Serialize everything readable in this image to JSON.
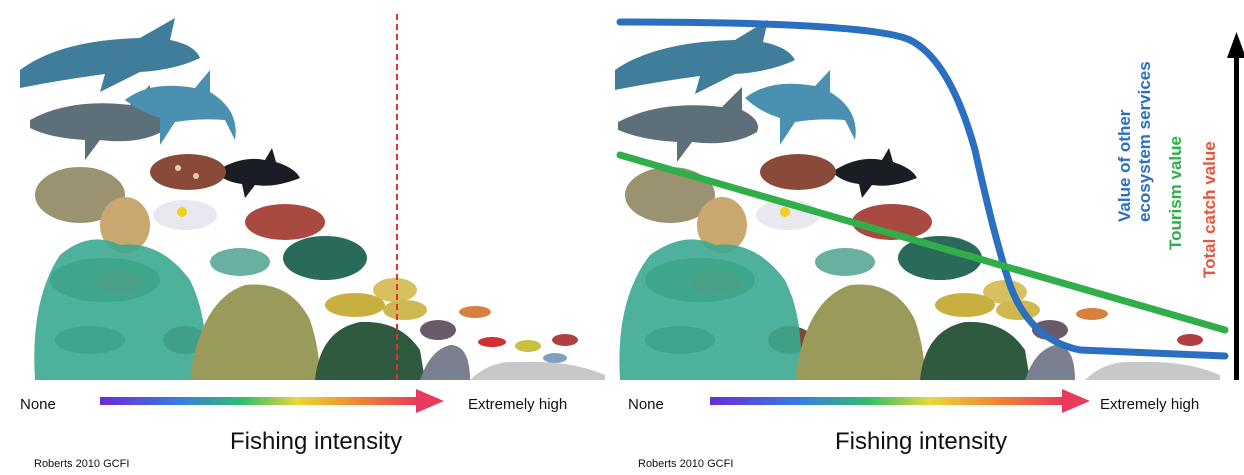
{
  "left_panel": {
    "axis_start_label": "None",
    "axis_end_label": "Extremely high",
    "axis_title": "Fishing intensity",
    "credit": "Roberts 2010 GCFI"
  },
  "right_panel": {
    "axis_start_label": "None",
    "axis_end_label": "Extremely high",
    "axis_title": "Fishing intensity",
    "credit": "Roberts 2010 GCFI",
    "curves": [
      {
        "label": "Value of other\necosystem services",
        "color": "#2b6fc0"
      },
      {
        "label": "Tourism value",
        "color": "#2fae4a"
      },
      {
        "label": "Total catch value",
        "color": "#e8553a"
      }
    ]
  },
  "colors": {
    "threshold_line": "#e03030",
    "arrow_gradient": [
      "#6a2bd8",
      "#3a7be0",
      "#2fbf6a",
      "#e8d83a",
      "#f08a30",
      "#e83a5a"
    ],
    "value_arrow": "#000000"
  },
  "icons": [
    "shark-icon",
    "fish-icon",
    "coral-icon",
    "gradient-arrow-icon",
    "up-arrow-icon"
  ]
}
